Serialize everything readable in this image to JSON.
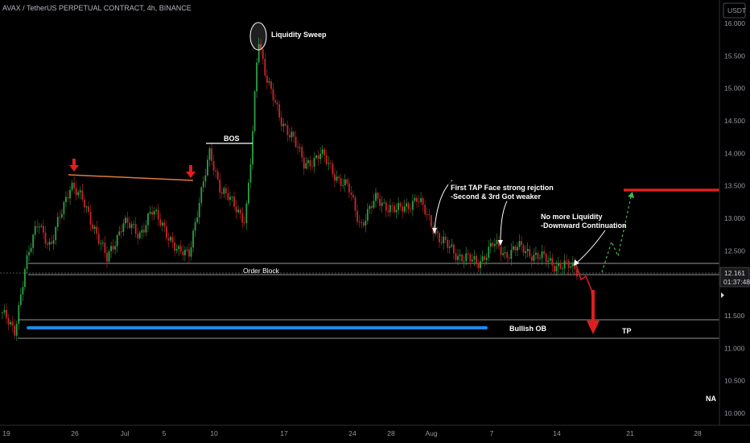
{
  "header": {
    "title": "AVAX / TetherUS PERPETUAL CONTRACT, 4h, BINANCE",
    "currency": "USDT"
  },
  "colors": {
    "bull": "#2ea043",
    "bear": "#c62828",
    "hline": "#c8c8c8",
    "blue_line": "#1e88e5",
    "red_line": "#e01e1e",
    "orange_line": "#e07b39",
    "green_dash": "#4caf50"
  },
  "annotations": {
    "liquidity_sweep": "Liquidity Sweep",
    "bos": "BOS",
    "first_tap_1": "First TAP Face strong rejction",
    "first_tap_2": "-Second & 3rd Got weaker",
    "no_liq_1": "No more Liquidity",
    "no_liq_2": "-Downward Continuation",
    "order_block": "Order Block",
    "bullish_ob": "Bullish OB",
    "tp": "TP",
    "na": "NA"
  },
  "price_tag": {
    "price": "12.161",
    "countdown": "01:37:48"
  },
  "chart_data": {
    "type": "candlestick",
    "y_ticks": [
      "16.000",
      "15.500",
      "15.000",
      "14.500",
      "14.000",
      "13.500",
      "13.000",
      "12.500",
      "12.000",
      "11.500",
      "11.000",
      "10.500",
      "10.000"
    ],
    "x_ticks": [
      "19",
      "26",
      "Jul",
      "5",
      "10",
      "17",
      "24",
      "28",
      "Aug",
      "7",
      "14",
      "21",
      "28"
    ],
    "ylim": [
      9.95,
      16.05
    ],
    "current_price": 12.161,
    "levels": {
      "order_block": [
        12.31,
        12.13
      ],
      "bullish_ob": [
        11.45,
        11.17
      ],
      "tp_level": 13.45
    },
    "key_points": [
      {
        "x": 0,
        "y": 11.55
      },
      {
        "x": 15,
        "y": 11.22
      },
      {
        "x": 28,
        "y": 12.25
      },
      {
        "x": 45,
        "y": 12.95
      },
      {
        "x": 60,
        "y": 12.55
      },
      {
        "x": 85,
        "y": 13.55
      },
      {
        "x": 100,
        "y": 13.25
      },
      {
        "x": 115,
        "y": 12.85
      },
      {
        "x": 130,
        "y": 12.35
      },
      {
        "x": 150,
        "y": 12.95
      },
      {
        "x": 170,
        "y": 12.75
      },
      {
        "x": 185,
        "y": 13.1
      },
      {
        "x": 200,
        "y": 12.9
      },
      {
        "x": 218,
        "y": 12.45
      },
      {
        "x": 232,
        "y": 12.5
      },
      {
        "x": 248,
        "y": 13.4
      },
      {
        "x": 258,
        "y": 14.05
      },
      {
        "x": 272,
        "y": 13.4
      },
      {
        "x": 290,
        "y": 13.2
      },
      {
        "x": 302,
        "y": 12.95
      },
      {
        "x": 310,
        "y": 14.05
      },
      {
        "x": 318,
        "y": 15.8
      },
      {
        "x": 328,
        "y": 15.2
      },
      {
        "x": 345,
        "y": 14.5
      },
      {
        "x": 360,
        "y": 14.3
      },
      {
        "x": 375,
        "y": 13.8
      },
      {
        "x": 395,
        "y": 14.0
      },
      {
        "x": 412,
        "y": 13.7
      },
      {
        "x": 430,
        "y": 13.45
      },
      {
        "x": 445,
        "y": 12.9
      },
      {
        "x": 465,
        "y": 13.3
      },
      {
        "x": 490,
        "y": 13.1
      },
      {
        "x": 515,
        "y": 13.3
      },
      {
        "x": 530,
        "y": 13.0
      },
      {
        "x": 545,
        "y": 12.65
      },
      {
        "x": 565,
        "y": 12.45
      },
      {
        "x": 590,
        "y": 12.3
      },
      {
        "x": 610,
        "y": 12.6
      },
      {
        "x": 625,
        "y": 12.45
      },
      {
        "x": 640,
        "y": 12.55
      },
      {
        "x": 660,
        "y": 12.45
      },
      {
        "x": 685,
        "y": 12.3
      },
      {
        "x": 705,
        "y": 12.25
      },
      {
        "x": 716,
        "y": 12.2
      }
    ]
  }
}
